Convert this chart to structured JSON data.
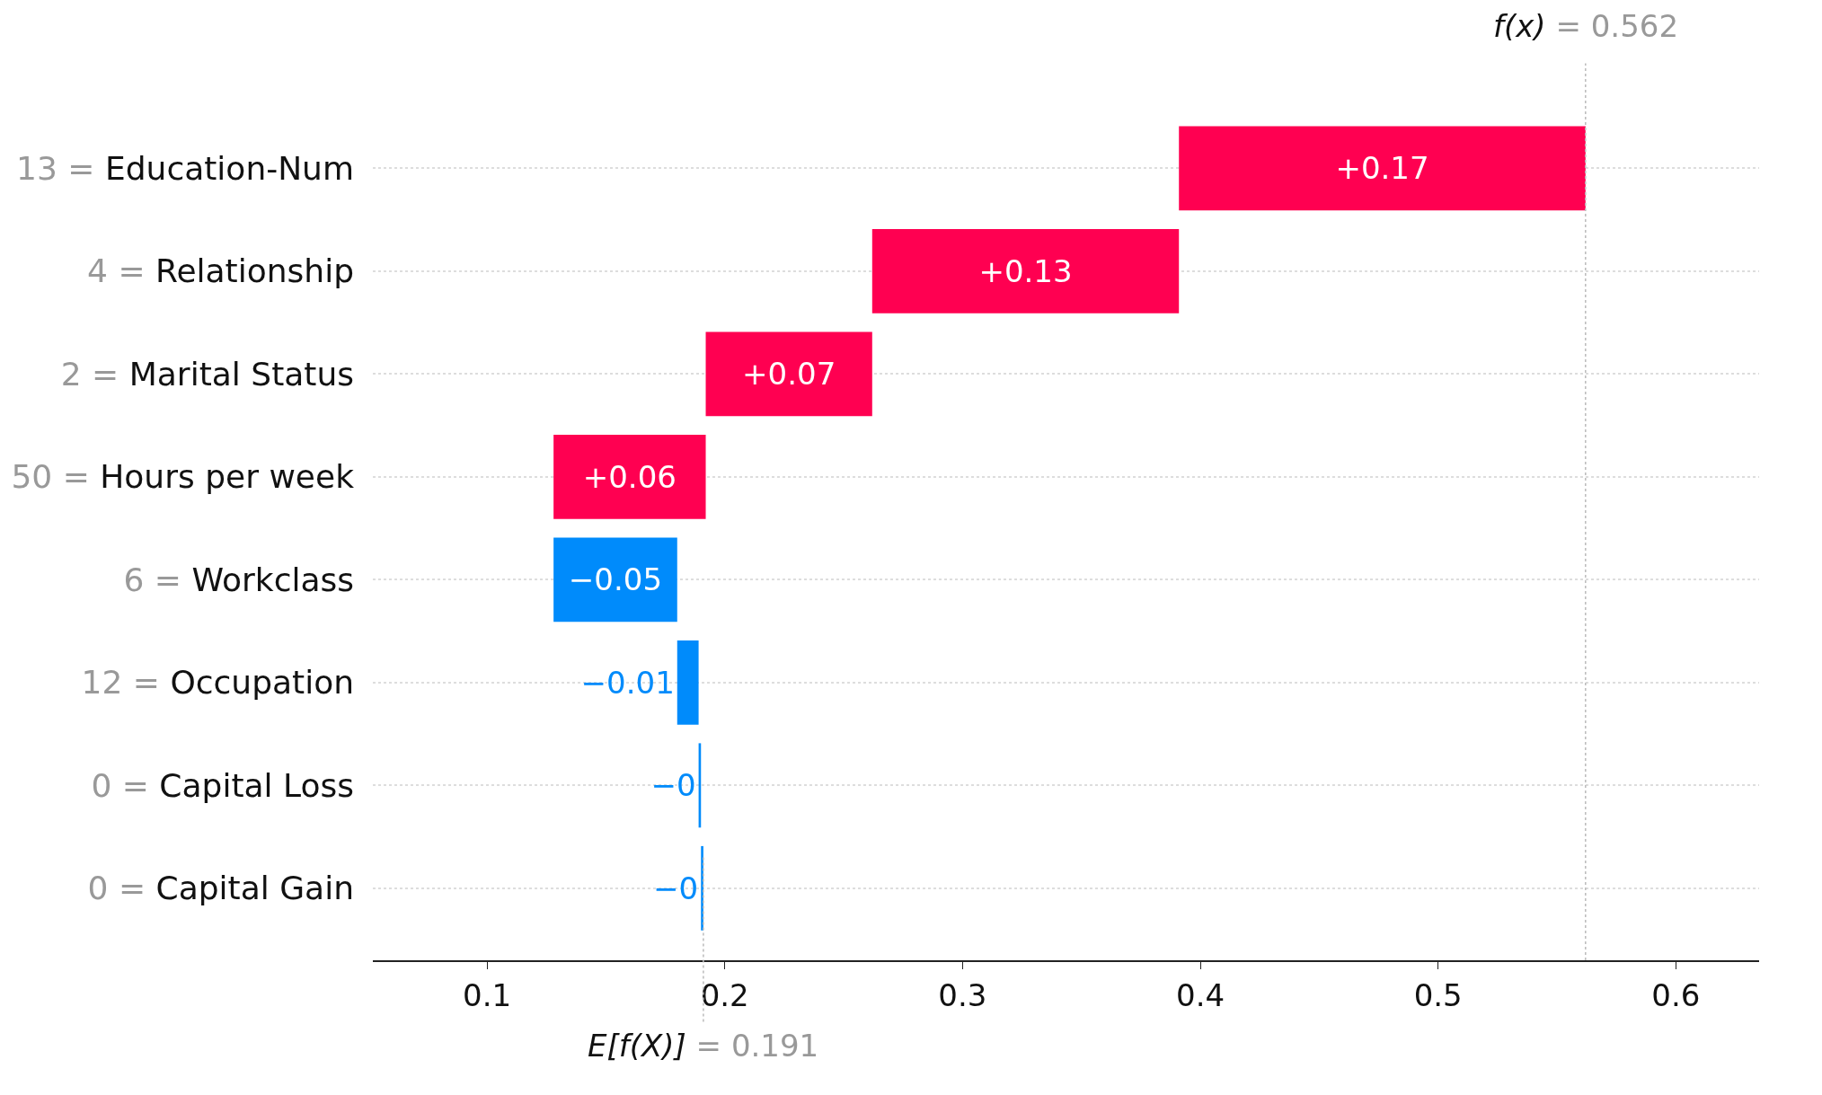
{
  "chart_data": {
    "type": "bar",
    "orientation": "horizontal",
    "categories": [
      "13 = Education-Num",
      "4 = Relationship",
      "2 = Marital Status",
      "50 = Hours per week",
      "6 = Workclass",
      "12 = Occupation",
      "0 = Capital Loss",
      "0 = Capital Gain"
    ],
    "base": [
      0.391,
      0.262,
      0.192,
      0.128,
      0.18,
      0.189,
      0.19,
      0.191
    ],
    "values": [
      0.171,
      0.129,
      0.07,
      0.064,
      -0.052,
      -0.009,
      -0.001,
      -0.001
    ],
    "colors": [
      "#ff0051",
      "#ff0051",
      "#ff0051",
      "#ff0051",
      "#008bfb",
      "#008bfb",
      "#008bfb",
      "#008bfb"
    ],
    "value_labels": [
      "+0.17",
      "+0.13",
      "+0.07",
      "+0.06",
      "−0.05",
      "−0.01",
      "−0",
      "−0"
    ],
    "xlim": [
      0.052,
      0.635
    ],
    "xticks": [
      0.1,
      0.2,
      0.3,
      0.4,
      0.5,
      0.6
    ],
    "ref_lines": [
      {
        "axis": "x",
        "value": 0.562,
        "label": "f(x) = 0.562",
        "color": "#bbbbbb",
        "line_style": "dotted"
      },
      {
        "axis": "x",
        "value": 0.191,
        "label": "E[f(X)] = 0.191",
        "color": "#bbbbbb",
        "line_style": "dotted"
      }
    ],
    "grid": "y"
  }
}
